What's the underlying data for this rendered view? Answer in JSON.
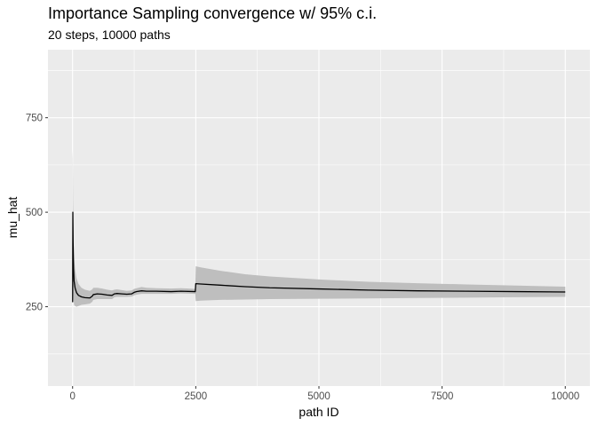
{
  "chart_data": {
    "type": "line",
    "title": "Importance Sampling convergence w/ 95% c.i.",
    "subtitle": "20 steps, 10000 paths",
    "xlabel": "path ID",
    "ylabel": "mu_hat",
    "xlim": [
      -500,
      10500
    ],
    "ylim": [
      40,
      930
    ],
    "x_ticks": [
      0,
      2500,
      5000,
      7500,
      10000
    ],
    "x_tick_labels": [
      "0",
      "2500",
      "5000",
      "7500",
      "10000"
    ],
    "y_ticks": [
      250,
      500,
      750
    ],
    "y_tick_labels": [
      "250",
      "500",
      "750"
    ],
    "grid": true,
    "legend": "none",
    "colors": {
      "panel": "#ebebeb",
      "grid": "#ffffff",
      "band": "#bebebe",
      "line": "#000000"
    },
    "series": [
      {
        "kind": "estimate",
        "x": [
          1,
          5,
          10,
          20,
          30,
          50,
          80,
          120,
          180,
          250,
          350,
          400,
          420,
          500,
          600,
          700,
          800,
          850,
          900,
          1000,
          1100,
          1200,
          1250,
          1300,
          1400,
          1500,
          1700,
          2000,
          2200,
          2490,
          2500,
          2600,
          3000,
          3500,
          4000,
          5000,
          6000,
          7000,
          8000,
          9000,
          10000
        ],
        "y": [
          262,
          500,
          420,
          350,
          318,
          300,
          287,
          280,
          276,
          274,
          273,
          278,
          282,
          284,
          283,
          281,
          280,
          284,
          285,
          284,
          283,
          284,
          288,
          290,
          292,
          291,
          291,
          290,
          291,
          290,
          311,
          310,
          307,
          303,
          300,
          297,
          294,
          292,
          291,
          290,
          289
        ]
      },
      {
        "kind": "95% c.i.",
        "x": [
          1,
          5,
          10,
          20,
          30,
          50,
          80,
          120,
          180,
          250,
          350,
          400,
          420,
          500,
          600,
          700,
          800,
          850,
          900,
          1000,
          1100,
          1200,
          1250,
          1300,
          1400,
          1500,
          1700,
          2000,
          2200,
          2490,
          2500,
          2600,
          3000,
          3500,
          4000,
          5000,
          6000,
          7000,
          8000,
          9000,
          10000
        ],
        "lower": [
          175,
          360,
          310,
          270,
          255,
          252,
          250,
          252,
          255,
          256,
          258,
          263,
          268,
          270,
          270,
          270,
          270,
          275,
          276,
          276,
          276,
          277,
          280,
          282,
          284,
          284,
          284,
          284,
          285,
          284,
          265,
          266,
          268,
          269,
          270,
          271,
          272,
          273,
          274,
          275,
          276
        ],
        "upper": [
          665,
          640,
          530,
          430,
          380,
          350,
          325,
          310,
          300,
          295,
          292,
          296,
          300,
          300,
          298,
          295,
          293,
          295,
          296,
          294,
          292,
          293,
          297,
          299,
          302,
          300,
          299,
          298,
          299,
          297,
          357,
          354,
          345,
          336,
          330,
          322,
          316,
          312,
          309,
          306,
          303
        ]
      }
    ]
  }
}
